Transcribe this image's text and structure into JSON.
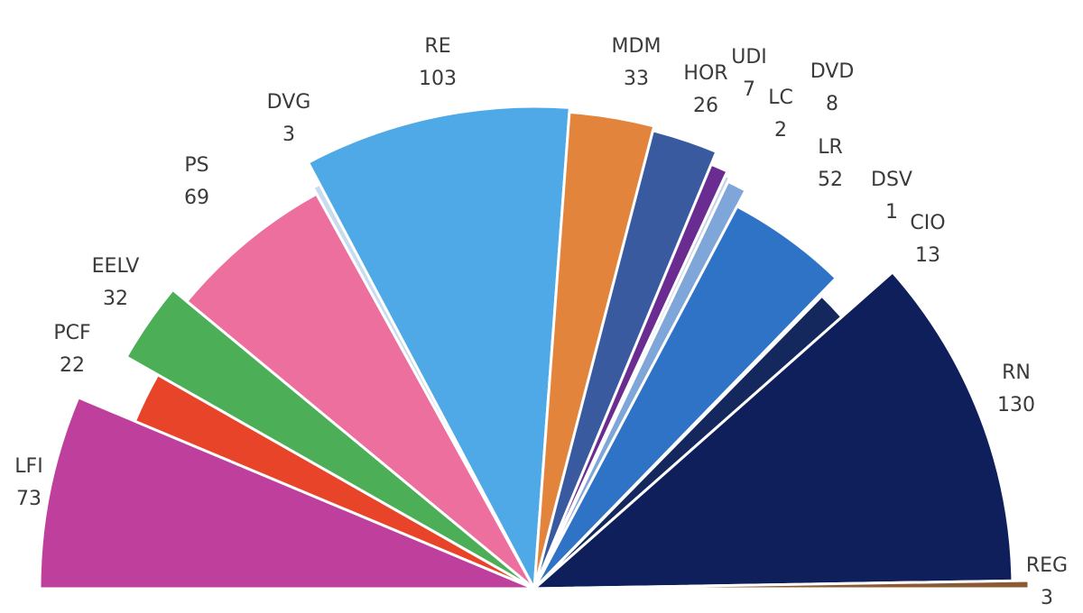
{
  "chart_data": {
    "type": "pie",
    "variant": "semicircle",
    "categories": [
      "LFI",
      "PCF",
      "EELV",
      "PS",
      "DVG",
      "RE",
      "MDM",
      "HOR",
      "UDI",
      "LC",
      "DVD",
      "LR",
      "DSV",
      "CIO",
      "RN",
      "REG"
    ],
    "values": [
      73,
      22,
      32,
      69,
      3,
      103,
      33,
      26,
      7,
      2,
      8,
      52,
      1,
      13,
      130,
      3
    ],
    "colors": [
      "#bf3f9c",
      "#e8442a",
      "#4caf58",
      "#ec6f9e",
      "#c9dcef",
      "#4fa9e6",
      "#e2843c",
      "#3a5aa0",
      "#6a2c91",
      "#c7d3e8",
      "#7fa6d8",
      "#2f73c6",
      "#aac4e6",
      "#15285e",
      "#0f1f5c",
      "#8a5a33"
    ],
    "total": 577
  }
}
